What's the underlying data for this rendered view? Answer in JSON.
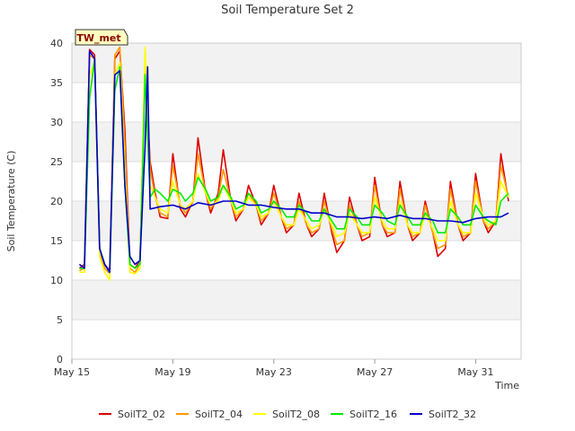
{
  "chart_data": {
    "type": "line",
    "title": "Soil Temperature Set 2",
    "xlabel": "Time",
    "ylabel": "Soil Temperature (C)",
    "badge": "TW_met",
    "xlim": [
      15,
      32.8
    ],
    "ylim": [
      0,
      40
    ],
    "x_ticks": [
      {
        "x": 15,
        "label": "May 15"
      },
      {
        "x": 19,
        "label": "May 19"
      },
      {
        "x": 23,
        "label": "May 23"
      },
      {
        "x": 27,
        "label": "May 27"
      },
      {
        "x": 31,
        "label": "May 31"
      }
    ],
    "y_ticks": [
      0,
      5,
      10,
      15,
      20,
      25,
      30,
      35,
      40
    ],
    "grid": true,
    "legend_position": "bottom",
    "series": [
      {
        "name": "SoilT2_02",
        "color": "#dd0000",
        "x": [
          15.3,
          15.5,
          15.7,
          15.9,
          16.1,
          16.3,
          16.5,
          16.7,
          16.9,
          17.1,
          17.3,
          17.5,
          17.7,
          17.9,
          18.1,
          18.3,
          18.5,
          18.8,
          19.0,
          19.3,
          19.5,
          19.8,
          20.0,
          20.3,
          20.5,
          20.8,
          21.0,
          21.3,
          21.5,
          21.8,
          22.0,
          22.3,
          22.5,
          22.8,
          23.0,
          23.3,
          23.5,
          23.8,
          24.0,
          24.3,
          24.5,
          24.8,
          25.0,
          25.3,
          25.5,
          25.8,
          26.0,
          26.3,
          26.5,
          26.8,
          27.0,
          27.3,
          27.5,
          27.8,
          28.0,
          28.3,
          28.5,
          28.8,
          29.0,
          29.3,
          29.5,
          29.8,
          30.0,
          30.3,
          30.5,
          30.8,
          31.0,
          31.3,
          31.5,
          31.8,
          32.0,
          32.3
        ],
        "y": [
          11.5,
          12.0,
          39.2,
          38.5,
          14.0,
          12.0,
          11.2,
          38.0,
          39.0,
          29.0,
          12.0,
          11.5,
          12.5,
          37.0,
          25.0,
          21.0,
          18.0,
          17.8,
          26.0,
          19.0,
          18.0,
          20.0,
          28.0,
          21.0,
          18.5,
          21.0,
          26.5,
          20.0,
          17.5,
          19.0,
          22.0,
          19.5,
          17.0,
          18.5,
          22.0,
          18.0,
          16.0,
          17.0,
          21.0,
          17.0,
          15.5,
          16.5,
          21.0,
          16.0,
          13.5,
          15.0,
          20.5,
          17.0,
          15.0,
          15.5,
          23.0,
          17.0,
          15.5,
          16.0,
          22.5,
          17.0,
          15.0,
          16.0,
          20.0,
          16.0,
          13.0,
          14.0,
          22.5,
          17.0,
          15.0,
          16.0,
          23.5,
          17.5,
          16.0,
          17.5,
          26.0,
          20.0
        ]
      },
      {
        "name": "SoilT2_04",
        "color": "#ff9900",
        "x": [
          15.3,
          15.5,
          15.7,
          15.9,
          16.1,
          16.3,
          16.5,
          16.7,
          16.9,
          17.1,
          17.3,
          17.5,
          17.7,
          17.9,
          18.1,
          18.3,
          18.5,
          18.8,
          19.0,
          19.3,
          19.5,
          19.8,
          20.0,
          20.3,
          20.5,
          20.8,
          21.0,
          21.3,
          21.5,
          21.8,
          22.0,
          22.3,
          22.5,
          22.8,
          23.0,
          23.3,
          23.5,
          23.8,
          24.0,
          24.3,
          24.5,
          24.8,
          25.0,
          25.3,
          25.5,
          25.8,
          26.0,
          26.3,
          26.5,
          26.8,
          27.0,
          27.3,
          27.5,
          27.8,
          28.0,
          28.3,
          28.5,
          28.8,
          29.0,
          29.3,
          29.5,
          29.8,
          30.0,
          30.3,
          30.5,
          30.8,
          31.0,
          31.3,
          31.5,
          31.8,
          32.0,
          32.3
        ],
        "y": [
          11.2,
          11.5,
          38.5,
          38.0,
          13.5,
          11.5,
          10.8,
          38.5,
          39.5,
          27.0,
          11.5,
          11.0,
          12.0,
          38.0,
          24.0,
          20.5,
          18.5,
          18.0,
          24.5,
          19.5,
          18.5,
          20.0,
          26.0,
          21.0,
          19.0,
          20.5,
          24.0,
          20.0,
          18.0,
          19.0,
          21.0,
          19.5,
          17.5,
          18.5,
          21.0,
          18.0,
          16.5,
          17.0,
          20.0,
          17.0,
          16.0,
          16.5,
          20.0,
          16.5,
          14.5,
          15.0,
          19.5,
          17.0,
          15.5,
          16.0,
          22.0,
          17.0,
          16.0,
          16.0,
          21.5,
          17.0,
          15.5,
          16.0,
          19.5,
          16.0,
          14.0,
          14.5,
          21.5,
          17.0,
          15.5,
          16.0,
          22.5,
          17.5,
          16.5,
          17.5,
          24.5,
          20.5
        ]
      },
      {
        "name": "SoilT2_08",
        "color": "#ffff00",
        "x": [
          15.3,
          15.5,
          15.7,
          15.9,
          16.1,
          16.3,
          16.5,
          16.7,
          16.9,
          17.1,
          17.3,
          17.5,
          17.7,
          17.9,
          18.1,
          18.3,
          18.5,
          18.8,
          19.0,
          19.3,
          19.5,
          19.8,
          20.0,
          20.3,
          20.5,
          20.8,
          21.0,
          21.3,
          21.5,
          21.8,
          22.0,
          22.3,
          22.5,
          22.8,
          23.0,
          23.3,
          23.5,
          23.8,
          24.0,
          24.3,
          24.5,
          24.8,
          25.0,
          25.3,
          25.5,
          25.8,
          26.0,
          26.3,
          26.5,
          26.8,
          27.0,
          27.3,
          27.5,
          27.8,
          28.0,
          28.3,
          28.5,
          28.8,
          29.0,
          29.3,
          29.5,
          29.8,
          30.0,
          30.3,
          30.5,
          30.8,
          31.0,
          31.3,
          31.5,
          31.8,
          32.0,
          32.3
        ],
        "y": [
          11.0,
          11.0,
          36.0,
          37.5,
          13.0,
          11.0,
          10.0,
          36.0,
          37.5,
          24.0,
          11.0,
          10.8,
          11.5,
          39.5,
          22.0,
          20.5,
          19.0,
          18.5,
          22.5,
          19.5,
          19.0,
          20.0,
          23.5,
          21.0,
          19.5,
          20.0,
          22.0,
          20.0,
          18.5,
          19.0,
          20.5,
          19.5,
          18.0,
          18.5,
          20.0,
          18.0,
          17.0,
          17.0,
          19.0,
          17.5,
          16.5,
          17.0,
          19.0,
          17.0,
          15.5,
          16.0,
          18.5,
          17.0,
          16.0,
          16.0,
          20.5,
          17.5,
          16.5,
          16.5,
          20.0,
          17.0,
          16.0,
          16.0,
          18.5,
          16.5,
          15.0,
          15.0,
          20.0,
          17.0,
          16.0,
          16.0,
          21.0,
          18.0,
          17.0,
          17.5,
          22.5,
          20.5
        ]
      },
      {
        "name": "SoilT2_16",
        "color": "#00ee00",
        "x": [
          15.3,
          15.5,
          15.7,
          15.9,
          16.1,
          16.3,
          16.5,
          16.7,
          16.9,
          17.1,
          17.3,
          17.5,
          17.7,
          17.9,
          18.1,
          18.3,
          18.5,
          18.8,
          19.0,
          19.3,
          19.5,
          19.8,
          20.0,
          20.3,
          20.5,
          20.8,
          21.0,
          21.3,
          21.5,
          21.8,
          22.0,
          22.3,
          22.5,
          22.8,
          23.0,
          23.3,
          23.5,
          23.8,
          24.0,
          24.3,
          24.5,
          24.8,
          25.0,
          25.3,
          25.5,
          25.8,
          26.0,
          26.3,
          26.5,
          26.8,
          27.0,
          27.3,
          27.5,
          27.8,
          28.0,
          28.3,
          28.5,
          28.8,
          29.0,
          29.3,
          29.5,
          29.8,
          30.0,
          30.3,
          30.5,
          30.8,
          31.0,
          31.3,
          31.5,
          31.8,
          32.0,
          32.3
        ],
        "y": [
          11.5,
          11.5,
          33.0,
          38.0,
          14.0,
          12.0,
          11.0,
          34.0,
          37.0,
          22.0,
          12.0,
          11.5,
          12.0,
          36.0,
          20.5,
          21.5,
          21.0,
          20.0,
          21.5,
          21.0,
          20.0,
          21.0,
          23.0,
          21.5,
          20.0,
          20.5,
          22.0,
          20.5,
          19.0,
          19.5,
          21.0,
          20.0,
          18.5,
          19.0,
          20.0,
          19.0,
          18.0,
          18.0,
          19.5,
          18.5,
          17.5,
          17.5,
          19.0,
          17.5,
          16.5,
          16.5,
          19.0,
          18.0,
          17.0,
          17.0,
          19.5,
          18.5,
          17.5,
          17.0,
          19.5,
          18.0,
          17.0,
          17.0,
          18.5,
          17.5,
          16.0,
          16.0,
          19.0,
          18.0,
          17.0,
          17.0,
          19.5,
          18.0,
          17.5,
          17.0,
          20.0,
          21.0
        ]
      },
      {
        "name": "SoilT2_32",
        "color": "#0000cc",
        "x": [
          15.3,
          15.5,
          15.7,
          15.9,
          16.1,
          16.3,
          16.5,
          16.7,
          16.9,
          17.1,
          17.3,
          17.5,
          17.7,
          17.9,
          18.0,
          18.1,
          18.5,
          19.0,
          19.5,
          20.0,
          20.5,
          21.0,
          21.5,
          22.0,
          22.5,
          23.0,
          23.5,
          24.0,
          24.5,
          25.0,
          25.5,
          26.0,
          26.5,
          27.0,
          27.5,
          28.0,
          28.5,
          29.0,
          29.5,
          30.0,
          30.5,
          31.0,
          31.5,
          32.0,
          32.3
        ],
        "y": [
          12.0,
          11.5,
          39.0,
          38.0,
          14.0,
          12.0,
          11.0,
          36.0,
          36.5,
          22.0,
          13.0,
          12.0,
          12.5,
          27.0,
          37.0,
          19.0,
          19.3,
          19.5,
          19.0,
          19.8,
          19.5,
          20.0,
          20.0,
          19.5,
          19.5,
          19.2,
          19.0,
          19.0,
          18.5,
          18.5,
          18.0,
          18.0,
          17.8,
          18.0,
          17.8,
          18.2,
          17.8,
          17.8,
          17.5,
          17.5,
          17.3,
          17.8,
          18.0,
          18.0,
          18.5
        ]
      }
    ]
  }
}
